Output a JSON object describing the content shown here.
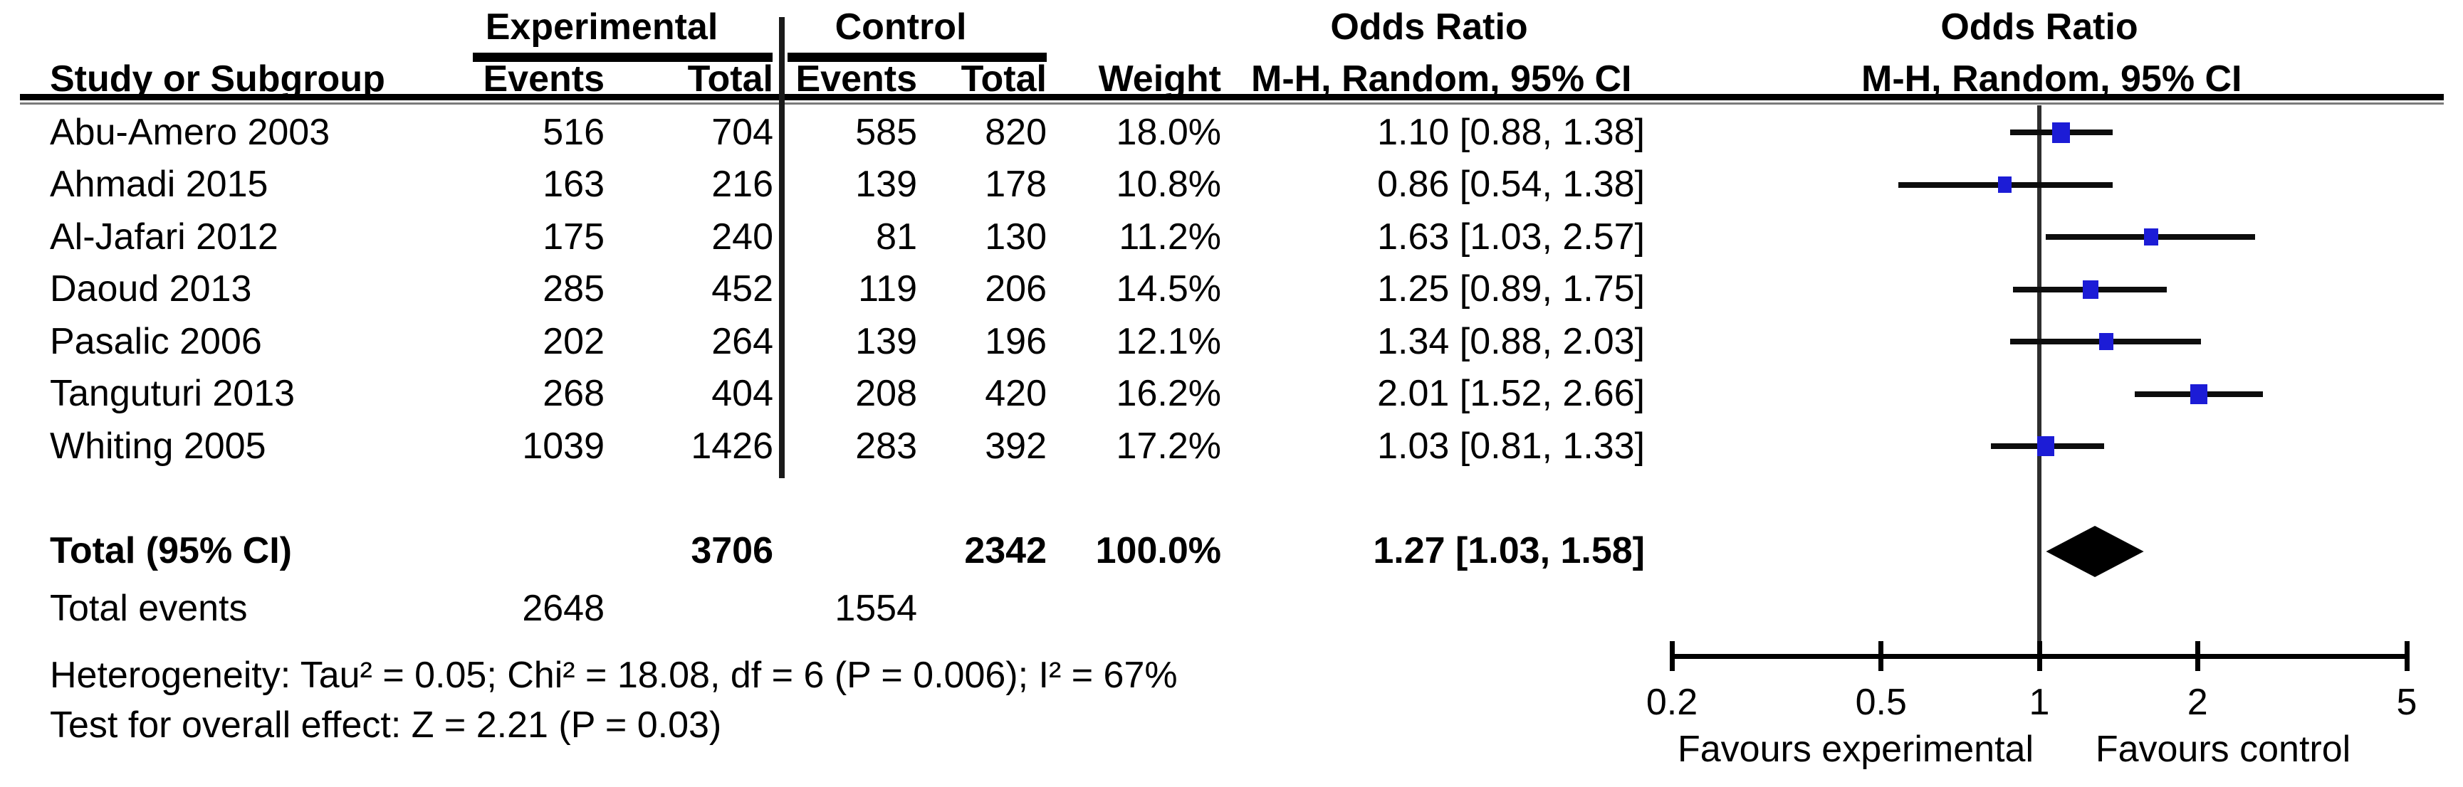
{
  "header": {
    "group_experimental": "Experimental",
    "group_control": "Control",
    "study_col": "Study or Subgroup",
    "events_col": "Events",
    "total_col": "Total",
    "weight_col": "Weight",
    "or_col_title": "Odds Ratio",
    "or_col_subtitle": "M-H, Random, 95% CI",
    "plot_title": "Odds Ratio",
    "plot_subtitle": "M-H, Random, 95% CI"
  },
  "totals": {
    "label": "Total (95% CI)",
    "exp_total": "3706",
    "ctrl_total": "2342",
    "weight": "100.0%",
    "or_text": "1.27 [1.03, 1.58]",
    "or": 1.27,
    "ci_low": 1.03,
    "ci_high": 1.58
  },
  "total_events": {
    "label": "Total events",
    "exp": "2648",
    "ctrl": "1554"
  },
  "footnotes": {
    "heterogeneity": "Heterogeneity: Tau² = 0.05; Chi² = 18.08, df = 6 (P = 0.006); I² = 67%",
    "overall_effect": "Test for overall effect: Z = 2.21 (P = 0.03)"
  },
  "axis": {
    "ticks": [
      "0.2",
      "0.5",
      "1",
      "2",
      "5"
    ],
    "tick_values": [
      0.2,
      0.5,
      1,
      2,
      5
    ],
    "favours_left": "Favours experimental",
    "favours_right": "Favours control"
  },
  "colors": {
    "marker": "#1C1CD6",
    "diamond": "#000000"
  },
  "chart_data": {
    "type": "forest",
    "effect_measure": "Odds Ratio",
    "method": "M-H, Random, 95% CI",
    "x_scale": "log",
    "xlim": [
      0.2,
      5
    ],
    "x_ticks": [
      0.2,
      0.5,
      1,
      2,
      5
    ],
    "favours": [
      "Favours experimental",
      "Favours control"
    ],
    "studies": [
      {
        "name": "Abu-Amero 2003",
        "exp_events": "516",
        "exp_total": "704",
        "ctrl_events": "585",
        "ctrl_total": "820",
        "weight": "18.0%",
        "weight_value": 18.0,
        "or_text": "1.10 [0.88, 1.38]",
        "or": 1.1,
        "ci_low": 0.88,
        "ci_high": 1.38
      },
      {
        "name": "Ahmadi 2015",
        "exp_events": "163",
        "exp_total": "216",
        "ctrl_events": "139",
        "ctrl_total": "178",
        "weight": "10.8%",
        "weight_value": 10.8,
        "or_text": "0.86 [0.54, 1.38]",
        "or": 0.86,
        "ci_low": 0.54,
        "ci_high": 1.38
      },
      {
        "name": "Al-Jafari 2012",
        "exp_events": "175",
        "exp_total": "240",
        "ctrl_events": "81",
        "ctrl_total": "130",
        "weight": "11.2%",
        "weight_value": 11.2,
        "or_text": "1.63 [1.03, 2.57]",
        "or": 1.63,
        "ci_low": 1.03,
        "ci_high": 2.57
      },
      {
        "name": "Daoud 2013",
        "exp_events": "285",
        "exp_total": "452",
        "ctrl_events": "119",
        "ctrl_total": "206",
        "weight": "14.5%",
        "weight_value": 14.5,
        "or_text": "1.25 [0.89, 1.75]",
        "or": 1.25,
        "ci_low": 0.89,
        "ci_high": 1.75
      },
      {
        "name": "Pasalic 2006",
        "exp_events": "202",
        "exp_total": "264",
        "ctrl_events": "139",
        "ctrl_total": "196",
        "weight": "12.1%",
        "weight_value": 12.1,
        "or_text": "1.34 [0.88, 2.03]",
        "or": 1.34,
        "ci_low": 0.88,
        "ci_high": 2.03
      },
      {
        "name": "Tanguturi 2013",
        "exp_events": "268",
        "exp_total": "404",
        "ctrl_events": "208",
        "ctrl_total": "420",
        "weight": "16.2%",
        "weight_value": 16.2,
        "or_text": "2.01 [1.52, 2.66]",
        "or": 2.01,
        "ci_low": 1.52,
        "ci_high": 2.66
      },
      {
        "name": "Whiting 2005",
        "exp_events": "1039",
        "exp_total": "1426",
        "ctrl_events": "283",
        "ctrl_total": "392",
        "weight": "17.2%",
        "weight_value": 17.2,
        "or_text": "1.03 [0.81, 1.33]",
        "or": 1.03,
        "ci_low": 0.81,
        "ci_high": 1.33
      }
    ],
    "total": {
      "label": "Total (95% CI)",
      "or": 1.27,
      "ci": [
        1.03,
        1.58
      ],
      "weight_pct": 100.0
    },
    "heterogeneity": "Tau² = 0.05; Chi² = 18.08, df = 6 (P = 0.006); I² = 67%",
    "overall_effect": "Z = 2.21 (P = 0.03)"
  }
}
